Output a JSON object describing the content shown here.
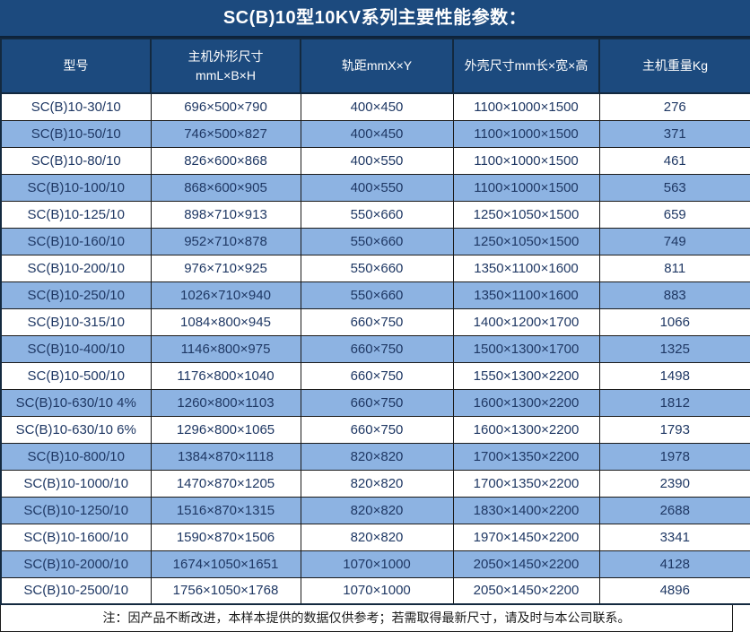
{
  "title": "SC(B)10型10KV系列主要性能参数：",
  "colors": {
    "header_bg": "#1c4a7e",
    "header_text": "#ffffff",
    "row_bg": "#ffffff",
    "row_alt_bg": "#8db3e2",
    "row_text": "#1f3864",
    "border": "#1b1b1b",
    "note_text": "#1a1a1a"
  },
  "table": {
    "columns": [
      {
        "label": "型号"
      },
      {
        "label": "主机外形尺寸",
        "sublabel": "mmL×B×H"
      },
      {
        "label": "轨距mmX×Y"
      },
      {
        "label": "外壳尺寸mm长×宽×高"
      },
      {
        "label": "主机重量Kg"
      }
    ],
    "rows": [
      [
        "SC(B)10-30/10",
        "696×500×790",
        "400×450",
        "1100×1000×1500",
        "276"
      ],
      [
        "SC(B)10-50/10",
        "746×500×827",
        "400×450",
        "1100×1000×1500",
        "371"
      ],
      [
        "SC(B)10-80/10",
        "826×600×868",
        "400×550",
        "1100×1000×1500",
        "461"
      ],
      [
        "SC(B)10-100/10",
        "868×600×905",
        "400×550",
        "1100×1000×1500",
        "563"
      ],
      [
        "SC(B)10-125/10",
        "898×710×913",
        "550×660",
        "1250×1050×1500",
        "659"
      ],
      [
        "SC(B)10-160/10",
        "952×710×878",
        "550×660",
        "1250×1050×1500",
        "749"
      ],
      [
        "SC(B)10-200/10",
        "976×710×925",
        "550×660",
        "1350×1100×1600",
        "811"
      ],
      [
        "SC(B)10-250/10",
        "1026×710×940",
        "550×660",
        "1350×1100×1600",
        "883"
      ],
      [
        "SC(B)10-315/10",
        "1084×800×945",
        "660×750",
        "1400×1200×1700",
        "1066"
      ],
      [
        "SC(B)10-400/10",
        "1146×800×975",
        "660×750",
        "1500×1300×1700",
        "1325"
      ],
      [
        "SC(B)10-500/10",
        "1176×800×1040",
        "660×750",
        "1550×1300×2200",
        "1498"
      ],
      [
        "SC(B)10-630/10 4%",
        "1260×800×1103",
        "660×750",
        "1600×1300×2200",
        "1812"
      ],
      [
        "SC(B)10-630/10 6%",
        "1296×800×1065",
        "660×750",
        "1600×1300×2200",
        "1793"
      ],
      [
        "SC(B)10-800/10",
        "1384×870×1118",
        "820×820",
        "1700×1350×2200",
        "1978"
      ],
      [
        "SC(B)10-1000/10",
        "1470×870×1205",
        "820×820",
        "1700×1350×2200",
        "2390"
      ],
      [
        "SC(B)10-1250/10",
        "1516×870×1315",
        "820×820",
        "1830×1400×2200",
        "2688"
      ],
      [
        "SC(B)10-1600/10",
        "1590×870×1506",
        "820×820",
        "1970×1450×2200",
        "3341"
      ],
      [
        "SC(B)10-2000/10",
        "1674×1050×1651",
        "1070×1000",
        "2050×1450×2200",
        "4128"
      ],
      [
        "SC(B)10-2500/10",
        "1756×1050×1768",
        "1070×1000",
        "2050×1450×2200",
        "4896"
      ]
    ]
  },
  "note": "注：因产品不断改进，本样本提供的数据仅供参考；若需取得最新尺寸，请及时与本公司联系。"
}
